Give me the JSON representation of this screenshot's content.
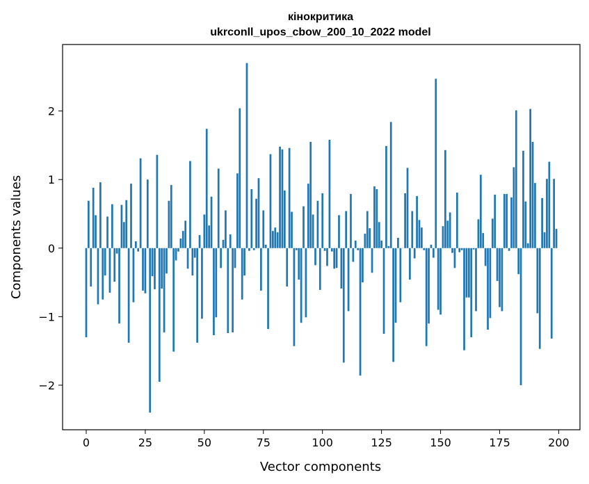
{
  "chart_data": {
    "type": "bar",
    "title": "кінокритика",
    "subtitle": "ukrconll_upos_cbow_200_10_2022 model",
    "xlabel": "Vector components",
    "ylabel": "Components values",
    "xlim": [
      -10,
      209
    ],
    "ylim": [
      -2.65,
      2.97
    ],
    "xticks": [
      0,
      25,
      50,
      75,
      100,
      125,
      150,
      175,
      200
    ],
    "xtick_labels": [
      "0",
      "25",
      "50",
      "75",
      "100",
      "125",
      "150",
      "175",
      "200"
    ],
    "yticks": [
      -2,
      -1,
      0,
      1,
      2
    ],
    "ytick_labels": [
      "−2",
      "−1",
      "0",
      "1",
      "2"
    ],
    "grid": false,
    "bar_color": "#1f77b4",
    "x": [
      0,
      1,
      2,
      3,
      4,
      5,
      6,
      7,
      8,
      9,
      10,
      11,
      12,
      13,
      14,
      15,
      16,
      17,
      18,
      19,
      20,
      21,
      22,
      23,
      24,
      25,
      26,
      27,
      28,
      29,
      30,
      31,
      32,
      33,
      34,
      35,
      36,
      37,
      38,
      39,
      40,
      41,
      42,
      43,
      44,
      45,
      46,
      47,
      48,
      49,
      50,
      51,
      52,
      53,
      54,
      55,
      56,
      57,
      58,
      59,
      60,
      61,
      62,
      63,
      64,
      65,
      66,
      67,
      68,
      69,
      70,
      71,
      72,
      73,
      74,
      75,
      76,
      77,
      78,
      79,
      80,
      81,
      82,
      83,
      84,
      85,
      86,
      87,
      88,
      89,
      90,
      91,
      92,
      93,
      94,
      95,
      96,
      97,
      98,
      99,
      100,
      101,
      102,
      103,
      104,
      105,
      106,
      107,
      108,
      109,
      110,
      111,
      112,
      113,
      114,
      115,
      116,
      117,
      118,
      119,
      120,
      121,
      122,
      123,
      124,
      125,
      126,
      127,
      128,
      129,
      130,
      131,
      132,
      133,
      134,
      135,
      136,
      137,
      138,
      139,
      140,
      141,
      142,
      143,
      144,
      145,
      146,
      147,
      148,
      149,
      150,
      151,
      152,
      153,
      154,
      155,
      156,
      157,
      158,
      159,
      160,
      161,
      162,
      163,
      164,
      165,
      166,
      167,
      168,
      169,
      170,
      171,
      172,
      173,
      174,
      175,
      176,
      177,
      178,
      179,
      180,
      181,
      182,
      183,
      184,
      185,
      186,
      187,
      188,
      189,
      190,
      191,
      192,
      193,
      194,
      195,
      196,
      197,
      198,
      199
    ],
    "values": [
      -1.3,
      0.69,
      -0.56,
      0.88,
      0.48,
      -0.82,
      0.96,
      -0.75,
      -0.4,
      0.46,
      -0.65,
      0.64,
      -0.49,
      -0.08,
      -1.1,
      0.63,
      0.38,
      0.7,
      -1.38,
      0.94,
      -0.79,
      0.1,
      -0.05,
      1.31,
      -0.62,
      -0.66,
      1.0,
      -2.4,
      -0.41,
      -0.6,
      1.36,
      -1.95,
      -0.59,
      -1.23,
      -0.37,
      0.69,
      0.92,
      -1.51,
      -0.18,
      -0.05,
      0.14,
      0.25,
      0.4,
      -0.3,
      1.27,
      -0.4,
      -0.14,
      -1.38,
      0.19,
      -1.03,
      0.49,
      1.74,
      0.33,
      0.75,
      -1.27,
      -1.01,
      1.16,
      -0.29,
      0.12,
      0.55,
      -1.24,
      0.2,
      -1.23,
      -0.29,
      1.09,
      2.04,
      -0.75,
      -0.4,
      2.7,
      -0.04,
      0.86,
      -0.03,
      0.72,
      1.02,
      -0.62,
      0.55,
      0.05,
      -1.18,
      1.37,
      0.25,
      0.3,
      0.23,
      1.48,
      1.44,
      0.84,
      -0.56,
      1.46,
      0.53,
      -1.43,
      -0.03,
      -0.46,
      -1.09,
      0.61,
      -1.01,
      0.94,
      1.55,
      0.49,
      -0.25,
      0.69,
      -0.61,
      0.8,
      -0.04,
      -0.26,
      1.58,
      -0.05,
      -0.3,
      -0.29,
      0.48,
      -0.59,
      -1.67,
      0.54,
      -0.92,
      0.79,
      -0.2,
      0.11,
      -0.03,
      -1.86,
      -0.5,
      0.21,
      0.54,
      0.29,
      -0.36,
      0.9,
      0.86,
      0.38,
      0.11,
      -1.25,
      1.49,
      0.03,
      1.84,
      -1.66,
      -1.09,
      0.15,
      -0.79,
      0.0,
      0.8,
      1.17,
      -0.46,
      0.54,
      -0.15,
      0.76,
      0.41,
      0.3,
      -0.03,
      -1.43,
      -1.1,
      0.05,
      -0.14,
      2.47,
      -0.9,
      -0.97,
      0.32,
      1.43,
      0.4,
      0.52,
      -0.07,
      -0.29,
      0.81,
      -0.06,
      -0.03,
      -1.49,
      -0.72,
      -0.72,
      -1.3,
      -0.02,
      -0.92,
      0.42,
      1.07,
      0.22,
      -0.26,
      -1.19,
      -1.02,
      0.43,
      0.78,
      -0.48,
      -0.86,
      -0.92,
      0.79,
      0.79,
      -0.04,
      0.74,
      1.18,
      2.01,
      -0.38,
      -2.0,
      1.42,
      0.68,
      0.07,
      2.03,
      1.55,
      0.95,
      -0.95,
      -1.47,
      0.73,
      0.23,
      1.01,
      1.26,
      -1.32,
      1.01,
      0.28
    ]
  }
}
